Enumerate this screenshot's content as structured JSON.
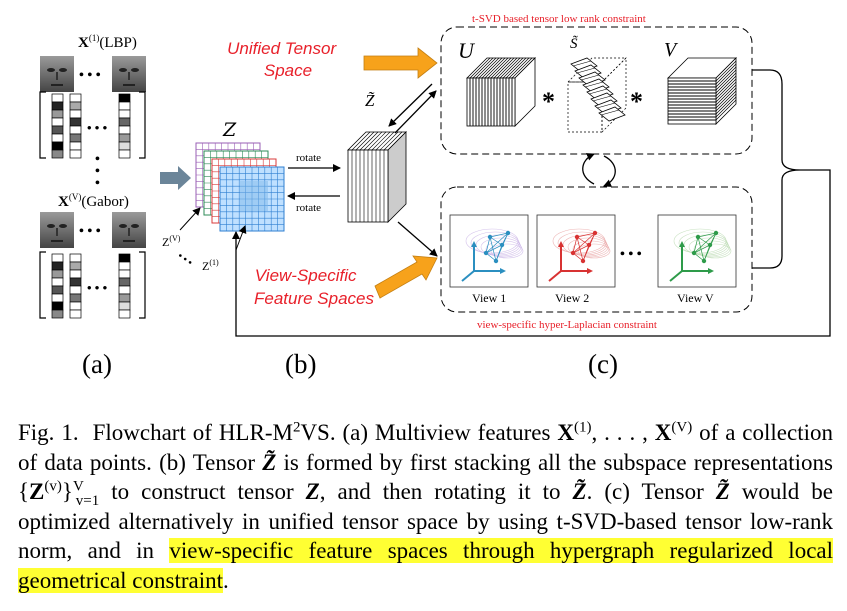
{
  "figure": {
    "panel_a": {
      "label": "(a)",
      "feature_top": "X",
      "feature_top_sup": "(1)",
      "feature_top_name": "(LBP)",
      "feature_bottom": "X",
      "feature_bottom_sup": "(V)",
      "feature_bottom_name": "(Gabor)",
      "dots": "• • •"
    },
    "panel_b": {
      "label": "(b)",
      "tensor_label": "Z",
      "z1_label": "Z",
      "z1_sup": "(1)",
      "zv_label": "Z",
      "zv_sup": "(V)",
      "rotate_top": "rotate",
      "rotate_bottom": "rotate",
      "rotated_label": "Z̃"
    },
    "panel_c": {
      "label": "(c)",
      "top_box_title": "t-SVD based tensor low rank constraint",
      "bottom_box_title": "view-specific hyper-Laplacian constraint",
      "u_label": "U",
      "s_label": "S̃",
      "v_label": "V",
      "star": "*",
      "unified_space": [
        "Unified Tensor",
        "Space"
      ],
      "view_specific_space": [
        "View-Specific",
        "Feature Spaces"
      ],
      "views": [
        "View 1",
        "View 2",
        "View V"
      ],
      "ellipsis": "• • •"
    }
  },
  "caption": {
    "label": "Fig. 1.",
    "t1": "Flowchart of HLR-M",
    "t1_sup": "2",
    "t2": "VS. (a) Multiview features ",
    "x1": "X",
    "x1_sup": "(1)",
    "t3": ", . . . , ",
    "xv": "X",
    "xv_sup": "(V)",
    "t4": " of a collection of data points. (b) Tensor ",
    "zt1": "Z̃",
    "t5": " is formed by first stacking all the subspace representations {",
    "zv": "Z",
    "zv_sup": "(v)",
    "zv_close": "}",
    "zv_supV": "V",
    "zv_sub": "v=1",
    "t6": " to construct tensor ",
    "zt2": "Z",
    "t7": ", and then rotating it to ",
    "zt3": "Z̃",
    "t8": ". (c) Tensor ",
    "zt4": "Z̃",
    "t9": " would be optimized alternatively in unified tensor space by using t-SVD-based tensor low-rank norm, and in ",
    "highlight": "view-specific feature spaces through hypergraph regularized local geometrical constraint",
    "t10": "."
  },
  "colors": {
    "annotation_red": "#e8202a",
    "arrow_orange": "#f7a21b",
    "arrow_blue_gray": "#6b8599",
    "grid_blue": "#2f7fd1",
    "highlight": "#ffff33"
  }
}
